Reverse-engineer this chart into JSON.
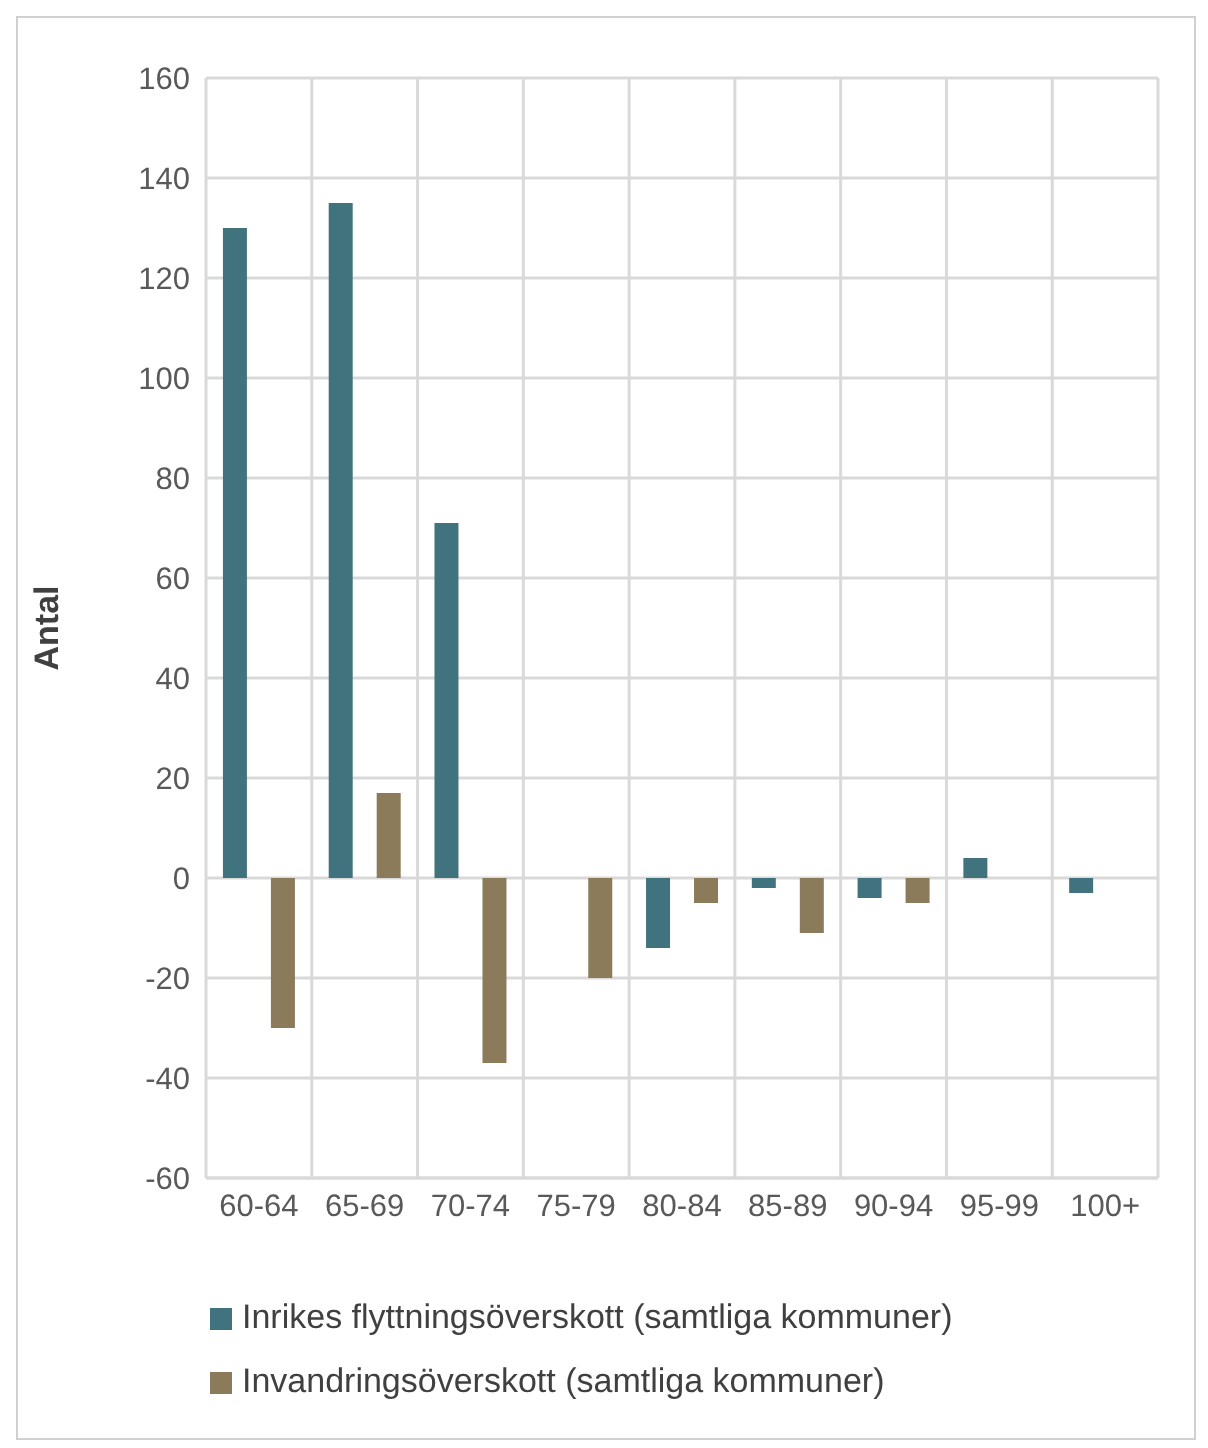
{
  "chart_data": {
    "type": "bar",
    "ylabel": "Antal",
    "categories": [
      "60-64",
      "65-69",
      "70-74",
      "75-79",
      "80-84",
      "85-89",
      "90-94",
      "95-99",
      "100+"
    ],
    "series": [
      {
        "name": "Inrikes flyttningsöverskott (samtliga kommuner)",
        "color": "#41737f",
        "values": [
          130,
          135,
          71,
          0,
          -14,
          -2,
          -4,
          4,
          -3
        ]
      },
      {
        "name": "Invandringsöverskott (samtliga kommuner)",
        "color": "#8b7b5a",
        "values": [
          -30,
          17,
          -37,
          -20,
          -5,
          -11,
          -5,
          0,
          0
        ]
      }
    ],
    "ylim": [
      -60,
      160
    ],
    "yticks": [
      -60,
      -40,
      -20,
      0,
      20,
      40,
      60,
      80,
      100,
      120,
      140,
      160
    ],
    "grid": true,
    "legend": "bottom"
  }
}
